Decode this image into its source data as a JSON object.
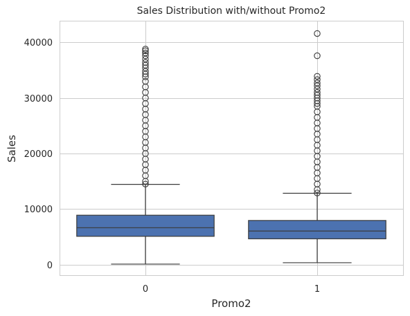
{
  "chart_data": {
    "type": "box",
    "title": "Sales Distribution with/without Promo2",
    "xlabel": "Promo2",
    "ylabel": "Sales",
    "categories": [
      "0",
      "1"
    ],
    "ylim": [
      -1900,
      43900
    ],
    "yticks": [
      0,
      10000,
      20000,
      30000,
      40000
    ],
    "grid": true,
    "box_color": "#4c72b0",
    "line_color": "#3a3a3a",
    "boxes": [
      {
        "category": "0",
        "whisker_low": 100,
        "q1": 5100,
        "median": 6650,
        "q3": 8900,
        "whisker_high": 14450,
        "outliers": [
          14500,
          15000,
          16000,
          17000,
          18000,
          19000,
          20000,
          21000,
          22000,
          23000,
          24000,
          25000,
          26000,
          27000,
          28000,
          29000,
          30000,
          31000,
          32000,
          33000,
          33800,
          34300,
          34800,
          35400,
          35900,
          36400,
          37000,
          37600,
          38100,
          38500,
          38800
        ]
      },
      {
        "category": "1",
        "whisker_low": 350,
        "q1": 4650,
        "median": 6050,
        "q3": 7950,
        "whisker_high": 12850,
        "outliers": [
          12900,
          13500,
          14500,
          15500,
          16500,
          17500,
          18500,
          19500,
          20500,
          21500,
          22500,
          23500,
          24500,
          25500,
          26500,
          27500,
          28500,
          29000,
          29500,
          30000,
          30500,
          31000,
          31600,
          32200,
          32700,
          33300,
          33900,
          37600,
          41600
        ]
      }
    ]
  }
}
